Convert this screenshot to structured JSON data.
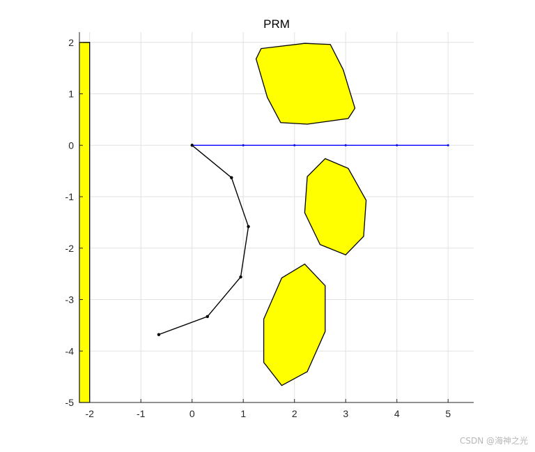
{
  "chart_data": {
    "type": "line",
    "title": "PRM",
    "xlabel": "",
    "ylabel": "",
    "xlim": [
      -2.2,
      5.5
    ],
    "ylim": [
      -5,
      2.2
    ],
    "xticks": [
      -2,
      -1,
      0,
      1,
      2,
      3,
      4,
      5
    ],
    "yticks": [
      2,
      1,
      0,
      -1,
      -2,
      -3,
      -4,
      -5
    ],
    "grid": true,
    "series": [
      {
        "color": "#0000ff",
        "x": [
          0,
          1,
          2,
          3,
          4,
          5
        ],
        "y": [
          0,
          0,
          0,
          0,
          0,
          0
        ]
      },
      {
        "color": "#000000",
        "x": [
          0,
          0.77,
          1.1,
          0.95,
          0.3,
          -0.65
        ],
        "y": [
          0,
          -0.63,
          -1.58,
          -2.56,
          -3.33,
          -3.68
        ]
      }
    ],
    "obstacles": [
      {
        "color": "#ffff00",
        "x": [
          -2.2,
          -2.0,
          -2.0,
          -2.2
        ],
        "y": [
          2.0,
          2.0,
          -5.0,
          -5.0
        ]
      },
      {
        "color": "#ffff00",
        "x": [
          1.35,
          2.2,
          2.7,
          2.95,
          3.18,
          3.05,
          2.25,
          1.73,
          1.47,
          1.25
        ],
        "y": [
          1.88,
          1.98,
          1.96,
          1.47,
          0.72,
          0.52,
          0.41,
          0.44,
          0.93,
          1.68
        ]
      },
      {
        "color": "#ffff00",
        "x": [
          2.6,
          3.05,
          3.4,
          3.35,
          3.0,
          2.5,
          2.2,
          2.25
        ],
        "y": [
          -0.26,
          -0.45,
          -1.07,
          -1.77,
          -2.13,
          -1.93,
          -1.31,
          -0.61
        ]
      },
      {
        "color": "#ffff00",
        "x": [
          2.2,
          2.6,
          2.6,
          2.25,
          1.75,
          1.4,
          1.4,
          1.75
        ],
        "y": [
          -2.31,
          -2.73,
          -3.62,
          -4.4,
          -4.67,
          -4.22,
          -3.38,
          -2.58
        ]
      }
    ]
  },
  "watermark": "CSDN @海神之光"
}
